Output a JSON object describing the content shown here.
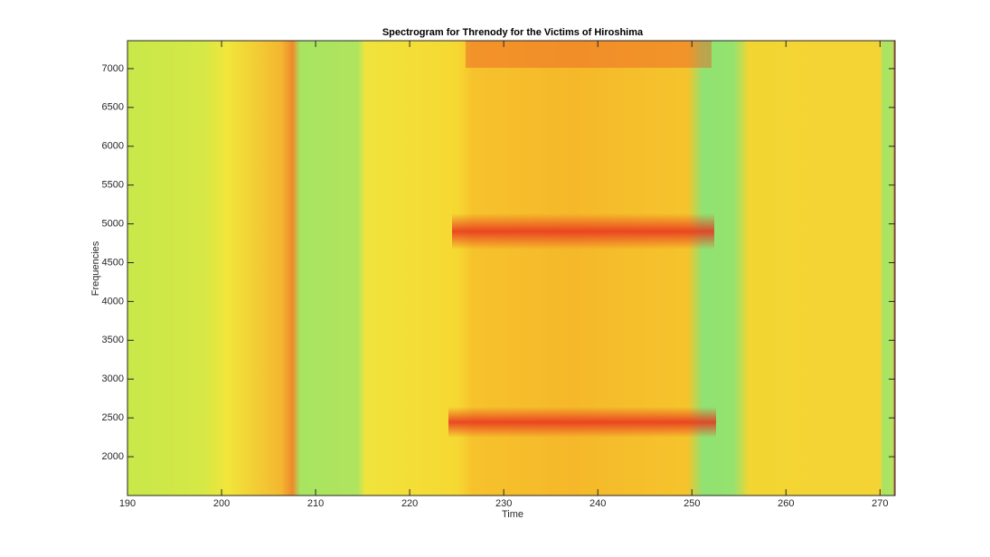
{
  "chart_data": {
    "type": "spectrogram",
    "title": "Spectrogram for Threnody for the Victims of Hiroshima",
    "x_label": "Time",
    "y_label": "Frequencies",
    "xlim": [
      190,
      271.6
    ],
    "xticks": [
      190,
      200,
      210,
      220,
      230,
      240,
      250,
      260,
      270
    ],
    "ylim": [
      1500,
      7360
    ],
    "yticks": [
      2000,
      2500,
      3000,
      3500,
      4000,
      4500,
      5000,
      5500,
      6000,
      6500,
      7000
    ]
  }
}
